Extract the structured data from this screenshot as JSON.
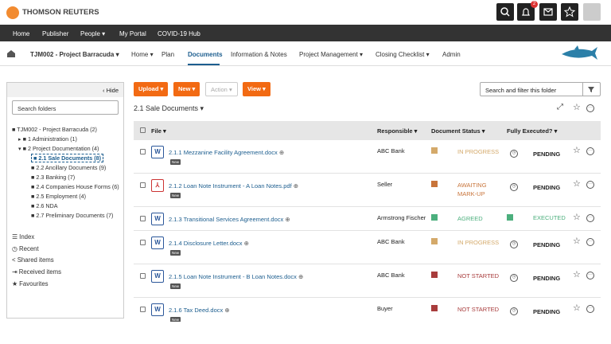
{
  "header": {
    "brand": "THOMSON REUTERS",
    "notifications": "2"
  },
  "nav": [
    "Home",
    "Publisher",
    "People",
    "My Portal",
    "COVID-19 Hub"
  ],
  "breadcrumb": {
    "project": "TJM002 - Project Barracuda",
    "tabs": [
      "Home",
      "Plan",
      "Documents",
      "Information & Notes",
      "Project Management",
      "Closing Checklist",
      "Admin"
    ],
    "active_tab": 2
  },
  "sidebar": {
    "hide": "Hide",
    "search_placeholder": "Search folders",
    "folders": [
      {
        "label": "TJM002 - Project Barracuda (2)",
        "children": [
          {
            "label": "1 Administration (1)",
            "children": []
          },
          {
            "label": "2 Project Documentation (4)",
            "children": [
              {
                "label": "2.1 Sale Documents (8)",
                "selected": true
              },
              {
                "label": "2.2 Ancillary Documents (9)"
              },
              {
                "label": "2.3 Banking (7)"
              },
              {
                "label": "2.4 Companies House Forms (6)"
              },
              {
                "label": "2.5 Employment (4)"
              },
              {
                "label": "2.6 NDA"
              },
              {
                "label": "2.7 Preliminary Documents (7)"
              }
            ]
          }
        ]
      }
    ],
    "links": [
      "Index",
      "Recent",
      "Shared items",
      "Received items",
      "Favourites"
    ]
  },
  "toolbar": {
    "buttons": [
      "Upload",
      "New",
      "Action",
      "View"
    ],
    "search_placeholder": "Search and filter this folder"
  },
  "folder_title": "2.1 Sale Documents",
  "table": {
    "columns": [
      "File",
      "Responsible",
      "Document Status",
      "Fully Executed?"
    ],
    "rows": [
      {
        "name": "2.1.1 Mezzanine Facility Agreement.docx",
        "tag": "New",
        "responsible": "ABC Bank",
        "status": "IN PROGRESS",
        "status_color": "#d4a96a",
        "executed": "PENDING"
      },
      {
        "name": "2.1.2 Loan Note Instrument - A Loan Notes.pdf",
        "tag": "New",
        "responsible": "Seller",
        "status": "AWAITING MARK-UP",
        "status_color": "#c8743a",
        "executed": "PENDING"
      },
      {
        "name": "2.1.3 Transitional Services Agreement.docx",
        "responsible": "Armstrong Fischer",
        "status": "AGREED",
        "status_color": "#4caf7d",
        "executed": "EXECUTED",
        "executed_color": "#4caf7d"
      },
      {
        "name": "2.1.4 Disclosure Letter.docx",
        "tag": "New",
        "responsible": "ABC Bank",
        "status": "IN PROGRESS",
        "status_color": "#d4a96a",
        "executed": "PENDING"
      },
      {
        "name": "2.1.5 Loan Note Instrument - B Loan Notes.docx",
        "tag": "New",
        "responsible": "ABC Bank",
        "status": "NOT STARTED",
        "status_color": "#a83c3c",
        "executed": "PENDING"
      },
      {
        "name": "2.1.6 Tax Deed.docx",
        "tag": "New",
        "responsible": "Buyer",
        "status": "NOT STARTED",
        "status_color": "#a83c3c",
        "executed": "PENDING"
      }
    ]
  }
}
